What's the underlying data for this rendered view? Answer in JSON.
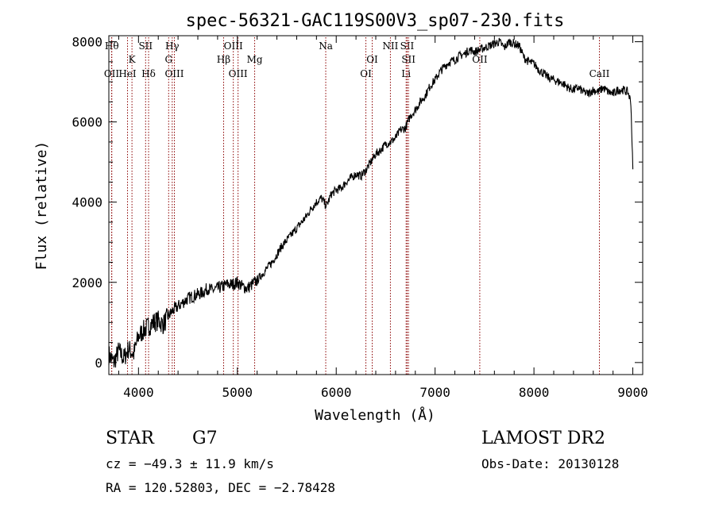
{
  "chart_data": {
    "type": "line",
    "title": "spec-56321-GAC119S00V3_sp07-230.fits",
    "xlabel": "Wavelength (Å)",
    "ylabel": "Flux (relative)",
    "xlim": [
      3700,
      9100
    ],
    "ylim": [
      -300,
      8150
    ],
    "xticks": [
      4000,
      5000,
      6000,
      7000,
      8000,
      9000
    ],
    "yticks": [
      0,
      2000,
      4000,
      6000,
      8000
    ],
    "grid": false,
    "legend": "none",
    "line_color": "#000000",
    "marker_color": "#8b0000",
    "series": [
      {
        "x": [
          3700,
          3750,
          3800,
          3850,
          3900,
          3950,
          4000,
          4050,
          4100,
          4150,
          4200,
          4250,
          4300,
          4350,
          4400,
          4450,
          4500,
          4550,
          4600,
          4650,
          4700,
          4750,
          4800,
          4850,
          4900,
          4950,
          5000,
          5050,
          5100,
          5150,
          5200,
          5250,
          5300,
          5350,
          5400,
          5450,
          5500,
          5550,
          5600,
          5650,
          5700,
          5750,
          5800,
          5850,
          5900,
          5950,
          6000,
          6050,
          6100,
          6150,
          6200,
          6250,
          6300,
          6350,
          6400,
          6450,
          6500,
          6550,
          6600,
          6650,
          6700,
          6750,
          6800,
          6850,
          6900,
          6950,
          7000,
          7050,
          7100,
          7150,
          7200,
          7250,
          7300,
          7350,
          7400,
          7450,
          7500,
          7550,
          7600,
          7650,
          7700,
          7750,
          7800,
          7850,
          7900,
          7950,
          8000,
          8050,
          8100,
          8150,
          8200,
          8250,
          8300,
          8350,
          8400,
          8450,
          8500,
          8550,
          8600,
          8650,
          8700,
          8750,
          8800,
          8850,
          8900,
          8950,
          8980,
          9000
        ],
        "y": [
          200,
          0,
          300,
          100,
          350,
          200,
          650,
          800,
          900,
          1000,
          1050,
          950,
          1150,
          1300,
          1400,
          1500,
          1600,
          1650,
          1700,
          1750,
          1850,
          1800,
          1850,
          1900,
          1950,
          1950,
          2000,
          1900,
          1850,
          1950,
          2050,
          2200,
          2350,
          2500,
          2700,
          2900,
          3050,
          3200,
          3350,
          3500,
          3650,
          3850,
          4000,
          4100,
          3900,
          4200,
          4300,
          4350,
          4500,
          4600,
          4700,
          4650,
          4800,
          5000,
          5200,
          5300,
          5450,
          5500,
          5600,
          5800,
          5850,
          6150,
          6300,
          6500,
          6650,
          6900,
          7050,
          7250,
          7400,
          7500,
          7550,
          7650,
          7700,
          7800,
          7750,
          7800,
          7850,
          7900,
          7950,
          8000,
          7850,
          8000,
          7950,
          7900,
          7600,
          7500,
          7450,
          7300,
          7200,
          7100,
          7050,
          7000,
          6950,
          6850,
          6800,
          6850,
          6750,
          6700,
          6800,
          6750,
          6850,
          6750,
          6700,
          6800,
          6800,
          6750,
          6500,
          4800
        ]
      }
    ],
    "line_markers": [
      {
        "x": 3730,
        "label": "Hθ",
        "row": 1
      },
      {
        "x": 3728,
        "label": "OII",
        "row": 3
      },
      {
        "x": 3889,
        "label": "HeI",
        "row": 3
      },
      {
        "x": 3934,
        "label": "K",
        "row": 2
      },
      {
        "x": 4072,
        "label": "SII",
        "row": 1
      },
      {
        "x": 4102,
        "label": "Hδ",
        "row": 3
      },
      {
        "x": 4305,
        "label": "G",
        "row": 2
      },
      {
        "x": 4341,
        "label": "Hγ",
        "row": 1
      },
      {
        "x": 4363,
        "label": "OIII",
        "row": 3
      },
      {
        "x": 4861,
        "label": "Hβ",
        "row": 2
      },
      {
        "x": 4959,
        "label": "OIII",
        "row": 1
      },
      {
        "x": 5007,
        "label": "OIII",
        "row": 3
      },
      {
        "x": 5175,
        "label": "Mg",
        "row": 2
      },
      {
        "x": 5894,
        "label": "Na",
        "row": 1
      },
      {
        "x": 6300,
        "label": "OI",
        "row": 3
      },
      {
        "x": 6364,
        "label": "OI",
        "row": 2
      },
      {
        "x": 6548,
        "label": "NII",
        "row": 1
      },
      {
        "x": 6707,
        "label": "Li",
        "row": 3
      },
      {
        "x": 6717,
        "label": "SII",
        "row": 1
      },
      {
        "x": 6731,
        "label": "SII",
        "row": 2
      },
      {
        "x": 7452,
        "label": "OII",
        "row": 2
      },
      {
        "x": 8662,
        "label": "CaII",
        "row": 3
      }
    ]
  },
  "info": {
    "object_class": "STAR",
    "subclass": "G7",
    "survey": "LAMOST DR2",
    "redshift": "cz = −49.3 ± 11.9 km/s",
    "obs_date": "Obs-Date: 20130128",
    "coords": "RA = 120.52803, DEC =  −2.78428"
  }
}
